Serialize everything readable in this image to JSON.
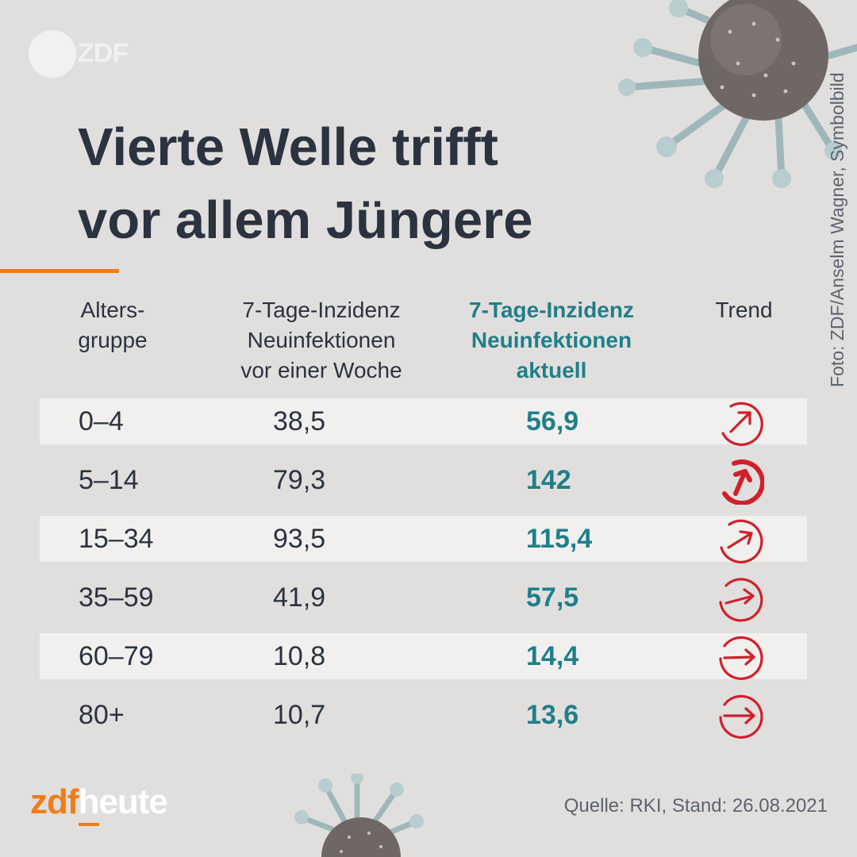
{
  "logo": {
    "text": "ZDF"
  },
  "photo_credit": "Foto: ZDF/Anselm Wagner, Symbolbild",
  "title": {
    "line1": "Vierte Welle trifft",
    "line2": "vor allem Jüngere"
  },
  "table": {
    "headers": {
      "age_line1": "Alters-",
      "age_line2": "gruppe",
      "prev_line1": "7-Tage-Inzidenz",
      "prev_line2": "Neuinfektionen",
      "prev_line3": "vor einer Woche",
      "cur_line1": "7-Tage-Inzidenz",
      "cur_line2": "Neuinfektionen",
      "cur_line3": "aktuell",
      "trend": "Trend"
    },
    "rows": [
      {
        "age": "0–4",
        "prev": "38,5",
        "cur": "56,9",
        "trend_icon": "arrow-up-right-icon"
      },
      {
        "age": "5–14",
        "prev": "79,3",
        "cur": "142",
        "trend_icon": "arrow-up-strong-icon"
      },
      {
        "age": "15–34",
        "prev": "93,5",
        "cur": "115,4",
        "trend_icon": "arrow-up-right-icon"
      },
      {
        "age": "35–59",
        "prev": "41,9",
        "cur": "57,5",
        "trend_icon": "arrow-right-up-icon"
      },
      {
        "age": "60–79",
        "prev": "10,8",
        "cur": "14,4",
        "trend_icon": "arrow-right-icon"
      },
      {
        "age": "80+",
        "prev": "10,7",
        "cur": "13,6",
        "trend_icon": "arrow-right-icon"
      }
    ]
  },
  "brand": {
    "part1": "zdf",
    "part2": "heute"
  },
  "source": "Quelle: RKI, Stand: 26.08.2021",
  "colors": {
    "background": "#e1dfdd",
    "text": "#2b3240",
    "accent_teal": "#1f7f8a",
    "accent_orange": "#f07c1a",
    "trend_red": "#d0202a",
    "stripe": "#f1f0ee"
  }
}
